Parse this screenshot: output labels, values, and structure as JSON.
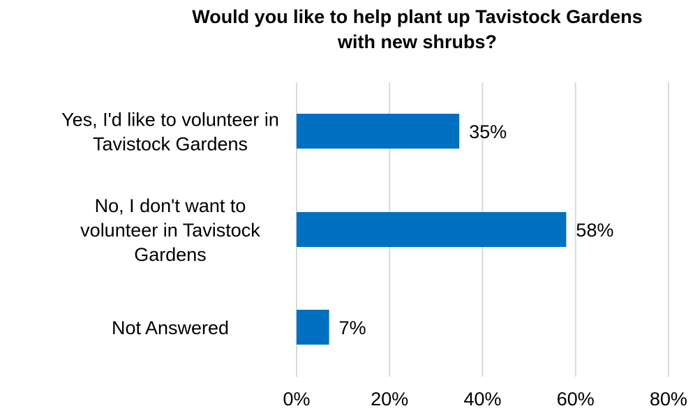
{
  "chart_data": {
    "type": "bar",
    "orientation": "horizontal",
    "title_lines": [
      "Would you like to help plant up Tavistock Gardens",
      "with new shrubs?"
    ],
    "categories": [
      [
        "Yes, I'd like to volunteer in",
        "Tavistock Gardens"
      ],
      [
        "No, I don't want to",
        "volunteer in Tavistock",
        "Gardens"
      ],
      [
        "Not Answered"
      ]
    ],
    "values": [
      35,
      58,
      7
    ],
    "value_labels": [
      "35%",
      "58%",
      "7%"
    ],
    "x_ticks": [
      0,
      20,
      40,
      60,
      80
    ],
    "x_tick_labels": [
      "0%",
      "20%",
      "40%",
      "60%",
      "80%"
    ],
    "xlim": [
      0,
      80
    ],
    "grid": "vertical",
    "legend": "none",
    "bar_color": "#0070c0"
  }
}
